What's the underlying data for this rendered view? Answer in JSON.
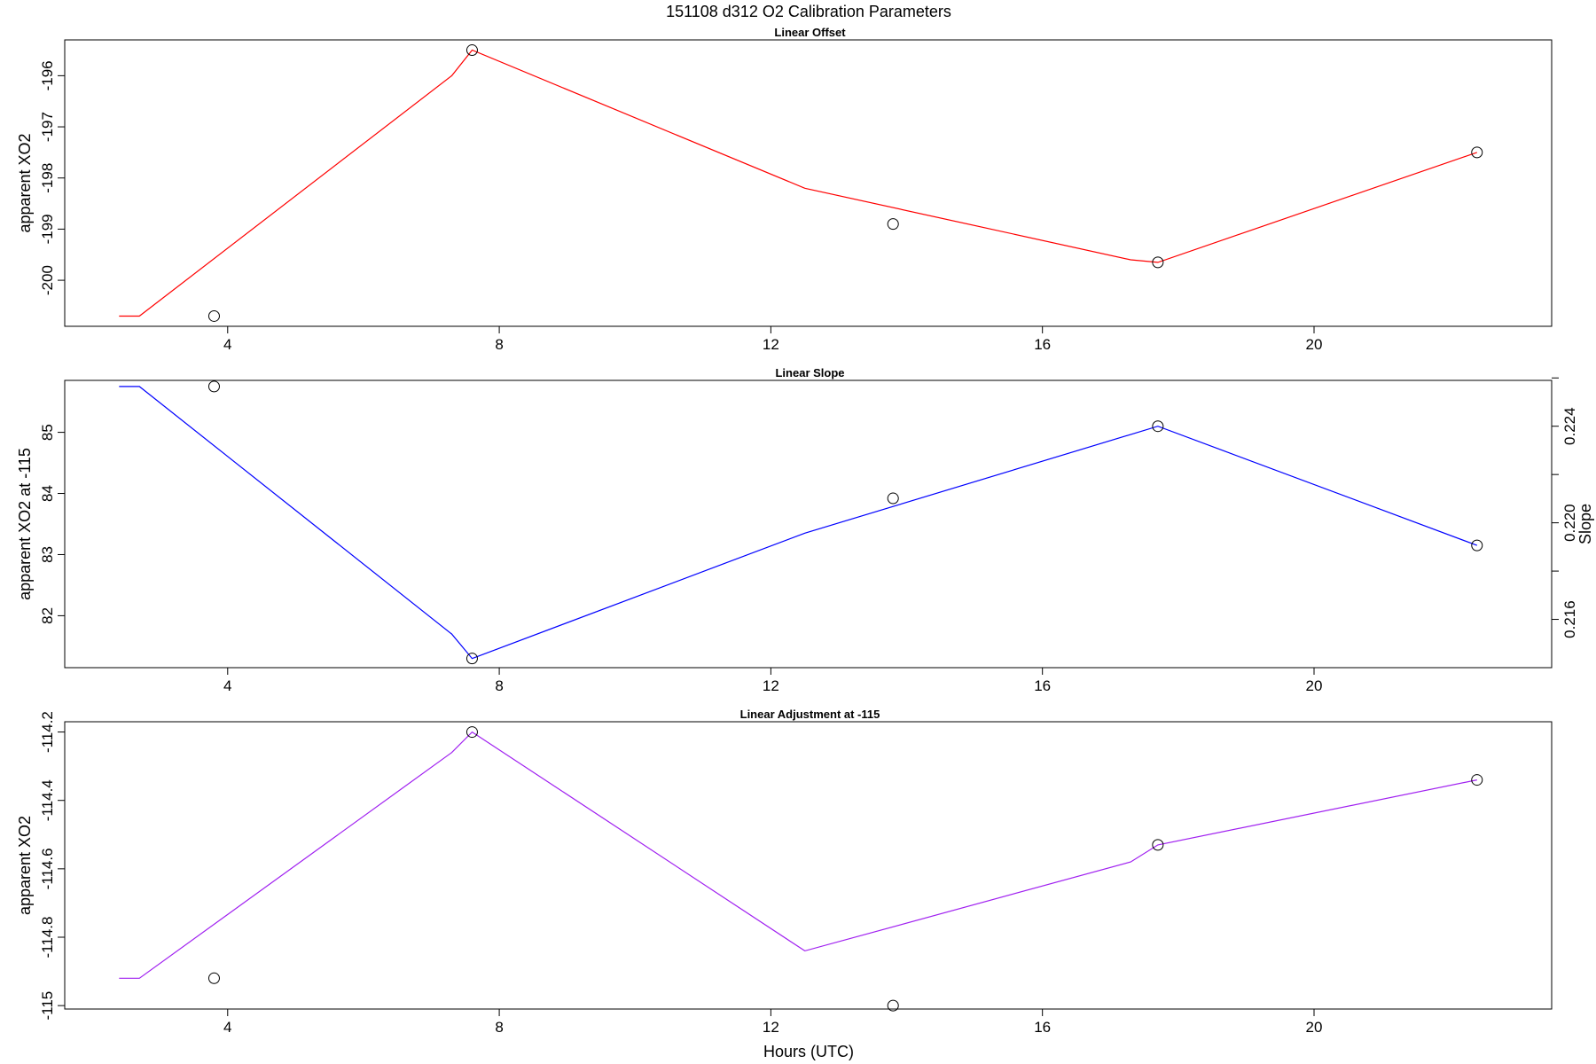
{
  "figure": {
    "title": "151108   d312   O2 Calibration Parameters",
    "xlabel": "Hours (UTC)"
  },
  "chart_data": [
    {
      "type": "line",
      "title": "Linear Offset",
      "xlabel": "",
      "ylabel": "apparent XO2",
      "xlim": [
        1.6,
        23.5
      ],
      "ylim": [
        -200.9,
        -195.3
      ],
      "xticks": [
        4,
        8,
        12,
        16,
        20
      ],
      "yticks": [
        -200,
        -199,
        -198,
        -197,
        -196
      ],
      "series": [
        {
          "kind": "fit-line",
          "color": "#ff0000",
          "x": [
            2.4,
            2.7,
            7.3,
            7.6,
            12.5,
            17.3,
            17.7,
            22.4
          ],
          "y": [
            -200.7,
            -200.7,
            -196.0,
            -195.5,
            -198.2,
            -199.6,
            -199.65,
            -197.5
          ]
        },
        {
          "kind": "points",
          "color": "#000000",
          "x": [
            3.8,
            7.6,
            13.8,
            17.7,
            22.4
          ],
          "y": [
            -200.7,
            -195.5,
            -198.9,
            -199.65,
            -197.5
          ]
        }
      ]
    },
    {
      "type": "line",
      "title": "Linear Slope",
      "xlabel": "",
      "ylabel": "apparent XO2 at -115",
      "ylabel_right": "Slope",
      "xlim": [
        1.6,
        23.5
      ],
      "ylim": [
        81.15,
        85.85
      ],
      "xticks": [
        4,
        8,
        12,
        16,
        20
      ],
      "yticks": [
        82,
        83,
        84,
        85
      ],
      "yticks_right_labeled": [
        "0.216",
        "0.220",
        "0.224"
      ],
      "yticks_right_minor": [
        0.218,
        0.222,
        0.226
      ],
      "right_axis_map": {
        "v1": 0.216,
        "y1": 81.94,
        "v2": 0.224,
        "y2": 85.1
      },
      "series": [
        {
          "kind": "fit-line",
          "color": "#0000ff",
          "x": [
            2.4,
            2.7,
            7.3,
            7.6,
            12.5,
            17.7,
            22.4
          ],
          "y": [
            85.75,
            85.75,
            81.7,
            81.3,
            83.35,
            85.1,
            83.15
          ]
        },
        {
          "kind": "points",
          "color": "#000000",
          "x": [
            3.8,
            7.6,
            13.8,
            17.7,
            22.4
          ],
          "y": [
            85.75,
            81.3,
            83.92,
            85.1,
            83.15
          ]
        }
      ]
    },
    {
      "type": "line",
      "title": "Linear Adjustment at -115",
      "xlabel": "",
      "ylabel": "apparent XO2",
      "xlim": [
        1.6,
        23.5
      ],
      "ylim": [
        -115.01,
        -114.17
      ],
      "xticks": [
        4,
        8,
        12,
        16,
        20
      ],
      "yticks": [
        -115.0,
        -114.8,
        -114.6,
        -114.4,
        -114.2
      ],
      "series": [
        {
          "kind": "fit-line",
          "color": "#a020f0",
          "x": [
            2.4,
            2.7,
            7.3,
            7.6,
            12.5,
            17.3,
            17.7,
            22.4
          ],
          "y": [
            -114.92,
            -114.92,
            -114.26,
            -114.2,
            -114.84,
            -114.58,
            -114.53,
            -114.34
          ]
        },
        {
          "kind": "points",
          "color": "#000000",
          "x": [
            3.8,
            7.6,
            13.8,
            17.7,
            22.4
          ],
          "y": [
            -114.92,
            -114.2,
            -115.0,
            -114.53,
            -114.34
          ]
        }
      ]
    }
  ]
}
